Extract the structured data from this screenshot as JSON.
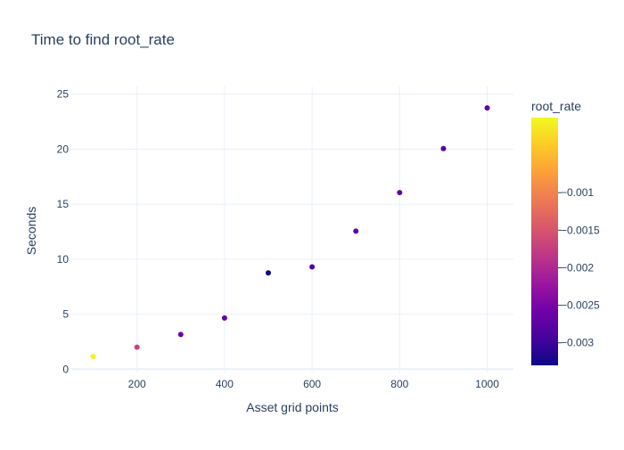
{
  "chart_data": {
    "type": "scatter",
    "title": "Time to find root_rate",
    "xlabel": "Asset grid points",
    "ylabel": "Seconds",
    "xlim": [
      50,
      1060
    ],
    "ylim": [
      -0.3,
      25.7
    ],
    "x_ticks": [
      200,
      400,
      600,
      800,
      1000
    ],
    "y_ticks": [
      0,
      5,
      10,
      15,
      20,
      25
    ],
    "grid": true,
    "points": [
      {
        "x": 100,
        "y": 1.15,
        "color_value": -5e-05
      },
      {
        "x": 200,
        "y": 2.0,
        "color_value": -0.0017
      },
      {
        "x": 300,
        "y": 3.15,
        "color_value": -0.0026
      },
      {
        "x": 400,
        "y": 4.65,
        "color_value": -0.0027
      },
      {
        "x": 500,
        "y": 8.75,
        "color_value": -0.0033
      },
      {
        "x": 600,
        "y": 9.3,
        "color_value": -0.0028
      },
      {
        "x": 700,
        "y": 12.55,
        "color_value": -0.0027
      },
      {
        "x": 800,
        "y": 16.05,
        "color_value": -0.0027
      },
      {
        "x": 900,
        "y": 20.05,
        "color_value": -0.0028
      },
      {
        "x": 1000,
        "y": 23.75,
        "color_value": -0.0027
      }
    ],
    "colorbar": {
      "title": "root_rate",
      "min": -0.0033,
      "max": 0.0,
      "ticks": [
        -0.001,
        -0.0015,
        -0.002,
        -0.0025,
        -0.003
      ],
      "tick_labels": [
        "−0.001",
        "−0.0015",
        "−0.002",
        "−0.0025",
        "−0.003"
      ],
      "colorscale": [
        "#0d0887",
        "#46039f",
        "#7201a8",
        "#9c179e",
        "#bd3786",
        "#d8576b",
        "#ed7953",
        "#fb9f3a",
        "#fdca26",
        "#f0f921"
      ]
    },
    "colors": {
      "grid": "#ebf0f8",
      "zeroline": "#ebf0f8",
      "text": "#2a3f5f"
    }
  }
}
